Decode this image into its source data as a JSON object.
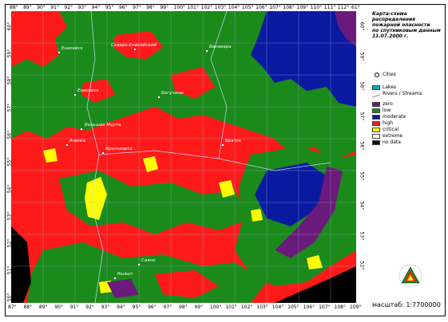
{
  "title": {
    "line1": "Карта-схема",
    "line2": "распределения",
    "line3": "пожарной опасности",
    "line4": "по спутниковым данным",
    "line5": "11.07.2000 г."
  },
  "legend": {
    "cities_label": "Cities",
    "lakes_label": "Lakes",
    "rivers_label": "Rivers / Streams",
    "classes": [
      {
        "label": "zero",
        "color": "#6a1a7a"
      },
      {
        "label": "low",
        "color": "#1a8a1a"
      },
      {
        "label": "moderate",
        "color": "#0a1aa0"
      },
      {
        "label": "high",
        "color": "#ff1a1a"
      },
      {
        "label": "critical",
        "color": "#ffff00"
      },
      {
        "label": "extreme",
        "color": "#ffffff"
      },
      {
        "label": "no data",
        "color": "#000000"
      }
    ]
  },
  "scale": {
    "text": "масштаб: 1:7700000"
  },
  "axes": {
    "top_lon": [
      "88°",
      "89°",
      "90°",
      "91°",
      "92°",
      "93°",
      "94°",
      "95°",
      "96°",
      "97°",
      "98°",
      "99°",
      "100°",
      "101°",
      "102°",
      "103°",
      "104°",
      "105°",
      "106°",
      "107°",
      "108°",
      "109°",
      "110°",
      "111°",
      "112°",
      "61°"
    ],
    "bottom_lon": [
      "87°",
      "88°",
      "89°",
      "90°",
      "91°",
      "92°",
      "93°",
      "94°",
      "95°",
      "96°",
      "97°",
      "98°",
      "99°",
      "100°",
      "101°",
      "102°",
      "103°",
      "104°",
      "105°",
      "106°",
      "107°",
      "108°",
      "109°"
    ],
    "left_lat": [
      "60°",
      "59°",
      "58°",
      "57°",
      "56°",
      "55°",
      "54°",
      "53°",
      "52°",
      "51°",
      "50°"
    ],
    "right_lat": [
      "60°",
      "59°",
      "58°",
      "57°",
      "56°",
      "55°",
      "54°",
      "53°",
      "52°"
    ]
  },
  "cities": [
    {
      "name": "Енисейск"
    },
    {
      "name": "Северо-Енисейский"
    },
    {
      "name": "Ванавара"
    },
    {
      "name": "Енисейск"
    },
    {
      "name": "Богучаны"
    },
    {
      "name": "Большая Мурта"
    },
    {
      "name": "Ачинск"
    },
    {
      "name": "Красноярск"
    },
    {
      "name": "Братск"
    },
    {
      "name": "Саяно"
    },
    {
      "name": "Кызыл"
    }
  ],
  "colors": {
    "zero": "#6a1a7a",
    "low": "#1a8a1a",
    "moderate": "#0a1aa0",
    "high": "#ff1a1a",
    "critical": "#ffff00",
    "nodata": "#000000",
    "lakes": "#00aacc"
  },
  "icons": {
    "logo": "fire-triangle-logo",
    "city": "city-dot-icon",
    "rivers": "river-line-icon"
  }
}
